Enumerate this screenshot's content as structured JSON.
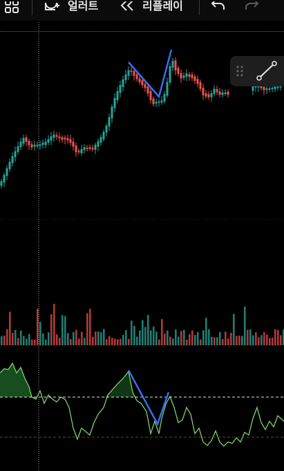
{
  "toolbar": {
    "alert_label": "얼러트",
    "replay_label": "리플레이",
    "icons": {
      "layout": "layout-grid-icon",
      "alert": "add-alert-icon",
      "replay": "replay-rewind-icon",
      "undo": "undo-icon",
      "redo": "redo-icon"
    }
  },
  "drawing_toolbar": {
    "icons": {
      "drag": "drag-handle-icon",
      "tool": "trend-line-icon"
    }
  },
  "colors": {
    "background": "#000000",
    "up": "#26a69a",
    "down": "#ef5350",
    "trendline": "#3a6df0",
    "oscillator": "#7ed36c",
    "crosshair": "#9a9a9a"
  },
  "panes": [
    "price-candles",
    "volume",
    "oscillator"
  ]
}
